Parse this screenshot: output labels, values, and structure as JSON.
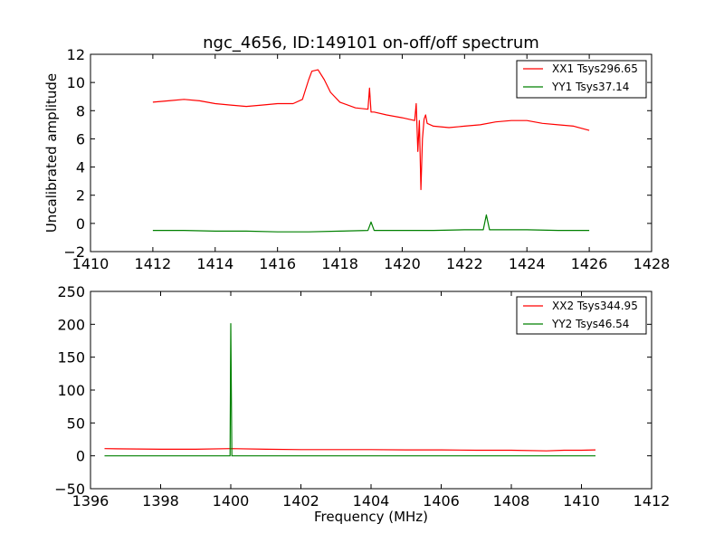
{
  "figure": {
    "title": "ngc_4656, ID:149101 on-off/off spectrum"
  },
  "chart_data": [
    {
      "type": "line",
      "title": "ngc_4656, ID:149101 on-off/off spectrum",
      "xlabel": "",
      "ylabel": "Uncalibrated amplitude",
      "xlim": [
        1410,
        1428
      ],
      "ylim": [
        -2,
        12
      ],
      "xticks": [
        1410,
        1412,
        1414,
        1416,
        1418,
        1420,
        1422,
        1424,
        1426,
        1428
      ],
      "yticks": [
        -2,
        0,
        2,
        4,
        6,
        8,
        10,
        12
      ],
      "xtick_labels": [
        "1410",
        "1412",
        "1414",
        "1416",
        "1418",
        "1420",
        "1422",
        "1424",
        "1426",
        "1428"
      ],
      "ytick_labels": [
        "−2",
        "0",
        "2",
        "4",
        "6",
        "8",
        "10",
        "12"
      ],
      "legend_position": "top-right",
      "series": [
        {
          "name": "XX1 Tsys296.65",
          "color": "#ff0000",
          "x": [
            1412.0,
            1412.5,
            1413.0,
            1413.5,
            1414.0,
            1414.5,
            1415.0,
            1415.5,
            1416.0,
            1416.5,
            1416.8,
            1417.0,
            1417.1,
            1417.3,
            1417.5,
            1417.7,
            1418.0,
            1418.5,
            1418.9,
            1418.95,
            1419.0,
            1419.1,
            1419.5,
            1420.0,
            1420.4,
            1420.45,
            1420.5,
            1420.55,
            1420.6,
            1420.65,
            1420.7,
            1420.75,
            1420.8,
            1421.0,
            1421.5,
            1422.0,
            1422.5,
            1423.0,
            1423.5,
            1424.0,
            1424.5,
            1425.0,
            1425.5,
            1426.0
          ],
          "y": [
            8.6,
            8.7,
            8.8,
            8.7,
            8.5,
            8.4,
            8.3,
            8.4,
            8.5,
            8.5,
            8.8,
            10.2,
            10.8,
            10.9,
            10.2,
            9.3,
            8.6,
            8.2,
            8.1,
            9.6,
            7.9,
            7.9,
            7.7,
            7.5,
            7.3,
            8.5,
            5.1,
            7.3,
            2.4,
            6.0,
            7.4,
            7.7,
            7.1,
            6.9,
            6.8,
            6.9,
            7.0,
            7.2,
            7.3,
            7.3,
            7.1,
            7.0,
            6.9,
            6.6
          ]
        },
        {
          "name": "YY1 Tsys37.14",
          "color": "#008000",
          "x": [
            1412.0,
            1413.0,
            1414.0,
            1415.0,
            1416.0,
            1417.0,
            1418.0,
            1418.9,
            1419.0,
            1419.1,
            1420.0,
            1421.0,
            1422.0,
            1422.6,
            1422.7,
            1422.8,
            1423.0,
            1424.0,
            1425.0,
            1426.0
          ],
          "y": [
            -0.5,
            -0.5,
            -0.55,
            -0.55,
            -0.6,
            -0.6,
            -0.55,
            -0.5,
            0.1,
            -0.5,
            -0.5,
            -0.5,
            -0.45,
            -0.45,
            0.6,
            -0.45,
            -0.45,
            -0.45,
            -0.5,
            -0.5
          ]
        }
      ]
    },
    {
      "type": "line",
      "title": "",
      "xlabel": "Frequency (MHz)",
      "ylabel": "",
      "xlim": [
        1396,
        1412
      ],
      "ylim": [
        -50,
        250
      ],
      "xticks": [
        1396,
        1398,
        1400,
        1402,
        1404,
        1406,
        1408,
        1410,
        1412
      ],
      "yticks": [
        -50,
        0,
        50,
        100,
        150,
        200,
        250
      ],
      "xtick_labels": [
        "1396",
        "1398",
        "1400",
        "1402",
        "1404",
        "1406",
        "1408",
        "1410",
        "1412"
      ],
      "ytick_labels": [
        "−50",
        "0",
        "50",
        "100",
        "150",
        "200",
        "250"
      ],
      "legend_position": "top-right",
      "series": [
        {
          "name": "XX2 Tsys344.95",
          "color": "#ff0000",
          "x": [
            1396.4,
            1397.0,
            1398.0,
            1399.0,
            1400.0,
            1401.0,
            1402.0,
            1403.0,
            1404.0,
            1405.0,
            1406.0,
            1407.0,
            1408.0,
            1409.0,
            1409.5,
            1410.0,
            1410.4
          ],
          "y": [
            11.0,
            10.5,
            10.0,
            10.0,
            11.0,
            10.0,
            9.5,
            9.5,
            9.5,
            9.0,
            9.0,
            8.5,
            8.5,
            7.5,
            8.5,
            8.5,
            9.0
          ]
        },
        {
          "name": "YY2 Tsys46.54",
          "color": "#008000",
          "x": [
            1396.4,
            1399.0,
            1399.98,
            1400.0,
            1400.03,
            1401.0,
            1404.0,
            1408.0,
            1410.4
          ],
          "y": [
            0,
            0,
            0,
            201,
            0,
            0,
            0,
            0,
            0
          ]
        }
      ]
    }
  ]
}
